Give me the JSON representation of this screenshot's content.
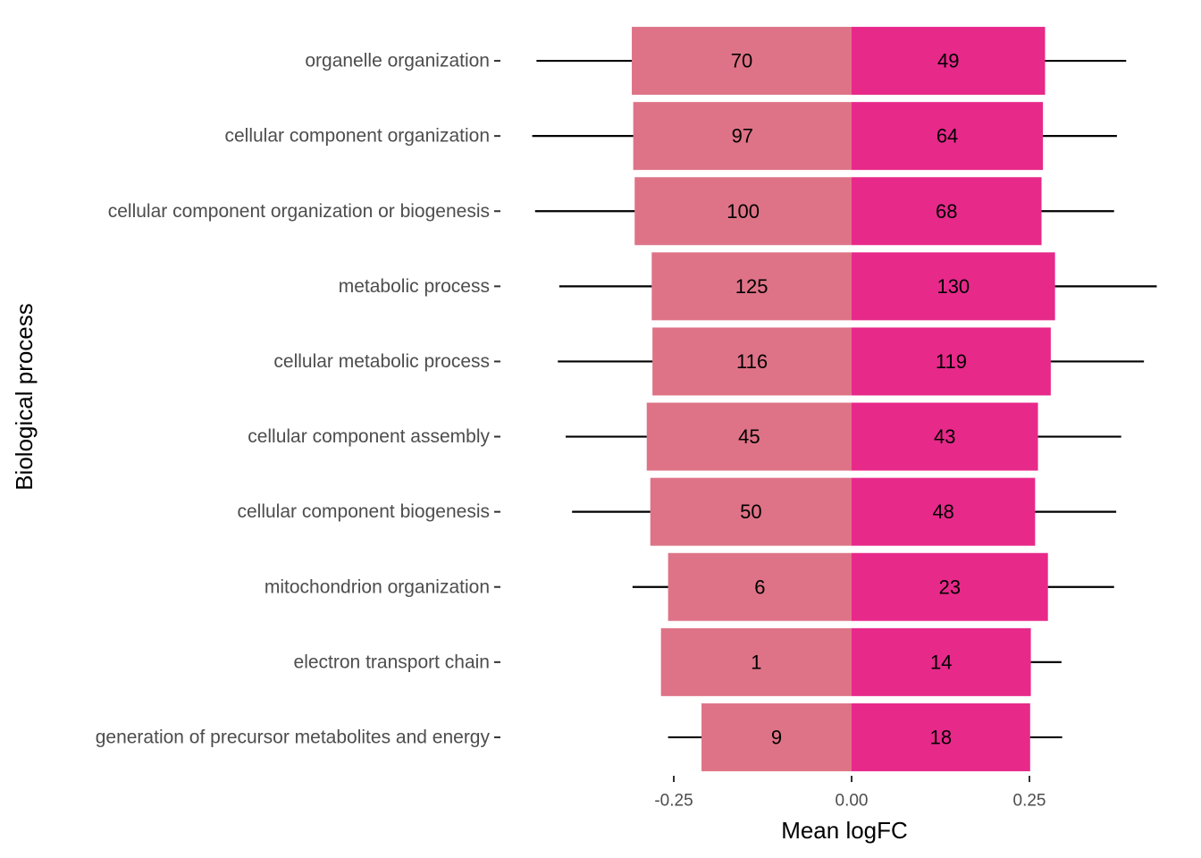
{
  "chart_data": {
    "type": "bar",
    "orientation": "horizontal",
    "stacked": "diverging",
    "xlabel": "Mean logFC",
    "ylabel": "Biological process",
    "xlim": [
      -0.4,
      0.43
    ],
    "xticks": [
      -0.25,
      0.0,
      0.25
    ],
    "xtick_labels": [
      "-0.25",
      "0.00",
      "0.25"
    ],
    "grid": false,
    "legend": "none",
    "categories": [
      "organelle organization",
      "cellular component organization",
      "cellular component organization or biogenesis",
      "metabolic process",
      "cellular metabolic process",
      "cellular component assembly",
      "cellular component biogenesis",
      "mitochondrion organization",
      "electron transport chain",
      "generation of precursor metabolites and energy"
    ],
    "series": [
      {
        "color": "#de7387",
        "values": [
          -0.309,
          -0.307,
          -0.305,
          -0.281,
          -0.28,
          -0.288,
          -0.283,
          -0.258,
          -0.268,
          -0.211
        ],
        "error_low": [
          -0.443,
          -0.449,
          -0.445,
          -0.411,
          -0.413,
          -0.402,
          -0.393,
          -0.308,
          -0.268,
          -0.258
        ],
        "labels": [
          "70",
          "97",
          "100",
          "125",
          "116",
          "45",
          "50",
          "6",
          "1",
          "9"
        ]
      },
      {
        "color": "#e7298a",
        "values": [
          0.272,
          0.269,
          0.267,
          0.286,
          0.28,
          0.262,
          0.258,
          0.276,
          0.252,
          0.251
        ],
        "error_high": [
          0.386,
          0.373,
          0.369,
          0.429,
          0.411,
          0.379,
          0.372,
          0.369,
          0.295,
          0.296
        ],
        "labels": [
          "49",
          "64",
          "68",
          "130",
          "119",
          "43",
          "48",
          "23",
          "14",
          "18"
        ]
      }
    ]
  }
}
